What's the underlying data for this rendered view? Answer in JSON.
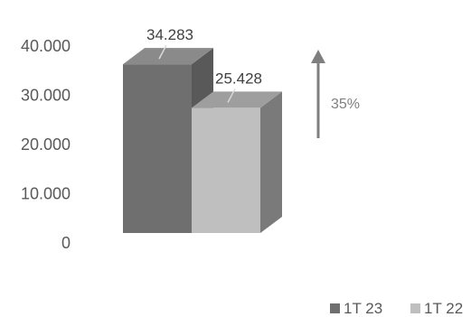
{
  "chart_data": {
    "type": "bar",
    "style": "3d-column",
    "categories": [
      ""
    ],
    "series": [
      {
        "name": "1T 23",
        "values": [
          34283
        ],
        "label": "34.283",
        "color": "#6f6f6f",
        "side": "#595959",
        "top": "#8a8a8a"
      },
      {
        "name": "1T 22",
        "values": [
          25428
        ],
        "label": "25.428",
        "color": "#bfbfbf",
        "side": "#7a7a7a",
        "top": "#9e9e9e"
      }
    ],
    "y_ticks": [
      "0",
      "10.000",
      "20.000",
      "30.000",
      "40.000"
    ],
    "ylim": [
      0,
      40000
    ],
    "grid": false,
    "legend_position": "bottom-right",
    "annotation": {
      "text": "35%",
      "direction": "up",
      "color": "#7f7f7f"
    },
    "title": "",
    "xlabel": "",
    "ylabel": ""
  }
}
